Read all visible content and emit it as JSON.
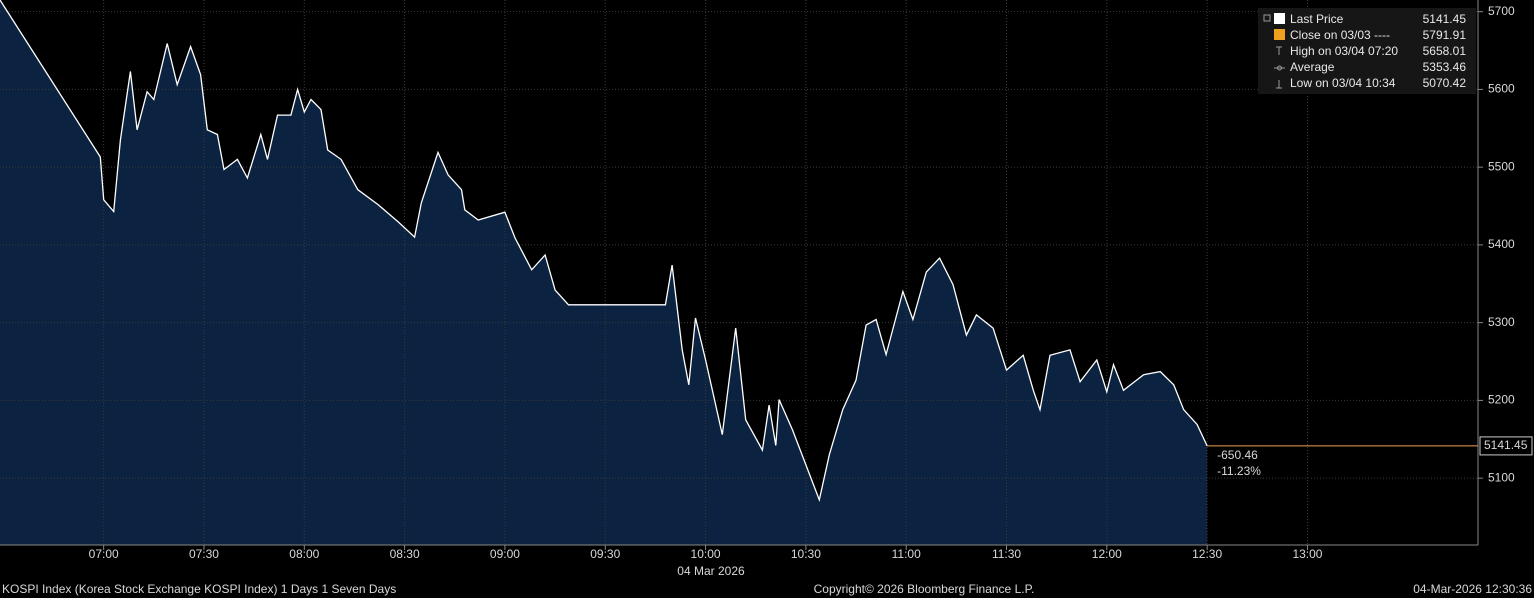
{
  "chart_data": {
    "type": "area",
    "series": [
      {
        "name": "Last Price",
        "color": "#ffffff",
        "fill": "#0b2340",
        "x": [
          "06:29",
          "06:59",
          "07:00",
          "07:03",
          "07:05",
          "07:08",
          "07:10",
          "07:13",
          "07:15",
          "07:19",
          "07:22",
          "07:26",
          "07:29",
          "07:31",
          "07:34",
          "07:36",
          "07:40",
          "07:43",
          "07:47",
          "07:49",
          "07:52",
          "07:56",
          "07:58",
          "08:00",
          "08:02",
          "08:05",
          "08:07",
          "08:11",
          "08:16",
          "08:22",
          "08:28",
          "08:33",
          "08:35",
          "08:40",
          "08:43",
          "08:47",
          "08:48",
          "08:52",
          "09:00",
          "09:03",
          "09:08",
          "09:12",
          "09:15",
          "09:19",
          "09:48",
          "09:50",
          "09:53",
          "09:55",
          "09:57",
          "10:00",
          "10:05",
          "10:09",
          "10:12",
          "10:17",
          "10:19",
          "10:21",
          "10:22",
          "10:26",
          "10:30",
          "10:34",
          "10:37",
          "10:41",
          "10:45",
          "10:48",
          "10:51",
          "10:54",
          "10:59",
          "11:02",
          "11:06",
          "11:10",
          "11:14",
          "11:18",
          "11:21",
          "11:26",
          "11:30",
          "11:35",
          "11:38",
          "11:40",
          "11:43",
          "11:49",
          "11:52",
          "11:57",
          "12:00",
          "12:02",
          "12:05",
          "12:11",
          "12:16",
          "12:20",
          "12:23",
          "12:27",
          "12:30"
        ],
        "values": [
          5715,
          5513,
          5458,
          5443,
          5535,
          5623,
          5548,
          5597,
          5587,
          5659,
          5606,
          5655,
          5619,
          5548,
          5542,
          5497,
          5510,
          5486,
          5542,
          5510,
          5567,
          5567,
          5600,
          5571,
          5587,
          5574,
          5522,
          5510,
          5471,
          5452,
          5430,
          5410,
          5454,
          5519,
          5490,
          5471,
          5445,
          5432,
          5442,
          5409,
          5368,
          5387,
          5342,
          5323,
          5323,
          5374,
          5265,
          5220,
          5306,
          5252,
          5156,
          5293,
          5175,
          5136,
          5194,
          5142,
          5201,
          5162,
          5117,
          5072,
          5130,
          5188,
          5226,
          5297,
          5304,
          5259,
          5340,
          5304,
          5365,
          5383,
          5349,
          5284,
          5310,
          5293,
          5239,
          5258,
          5213,
          5188,
          5258,
          5265,
          5224,
          5252,
          5211,
          5246,
          5213,
          5233,
          5237,
          5220,
          5188,
          5169,
          5141.45
        ]
      }
    ],
    "xlim": [
      "06:29",
      "13:51"
    ],
    "xticks": [
      "07:00",
      "07:30",
      "08:00",
      "08:30",
      "09:00",
      "09:30",
      "10:00",
      "10:30",
      "11:00",
      "11:30",
      "12:00",
      "12:30",
      "13:00"
    ],
    "ylim": [
      5014,
      5715
    ],
    "yticks": [
      5100,
      5200,
      5300,
      5400,
      5500,
      5600,
      5700
    ],
    "grid": true,
    "date_label": "04 Mar 2026",
    "last_price": 5141.45,
    "last_price_color": "#f0a050",
    "change": -650.46,
    "change_pct": "-11.23%",
    "legend": [
      {
        "label": "Last Price",
        "value": 5141.45
      },
      {
        "label": "Close on 03/03 ----",
        "value": 5791.91
      },
      {
        "label": "High on 03/04 07:20",
        "value": 5658.01
      },
      {
        "label": "Average",
        "value": 5353.46
      },
      {
        "label": "Low on 03/04 10:34",
        "value": 5070.42
      }
    ],
    "footer": {
      "left": "KOSPI Index (Korea Stock Exchange KOSPI Index) 1 Days 1 Seven Days",
      "center": "Copyright© 2026 Bloomberg Finance L.P.",
      "right": "04-Mar-2026 12:30:36"
    }
  }
}
